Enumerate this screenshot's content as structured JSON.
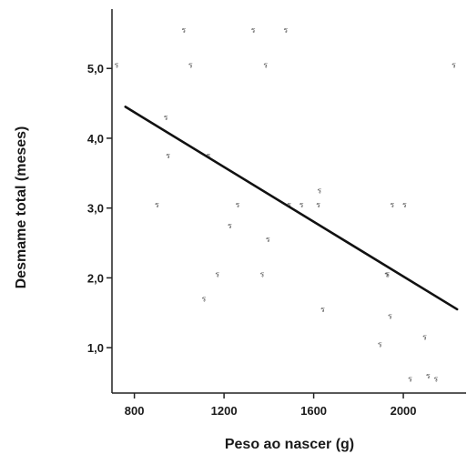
{
  "chart_data": {
    "type": "scatter",
    "xlabel": "Peso ao nascer (g)",
    "ylabel": "Desmame total (meses)",
    "xlim": [
      700,
      2280
    ],
    "ylim": [
      0.35,
      5.85
    ],
    "x_ticks": [
      800,
      1200,
      1600,
      2000
    ],
    "x_tick_labels": [
      "800",
      "1200",
      "1600",
      "2000"
    ],
    "y_ticks": [
      1.0,
      2.0,
      3.0,
      4.0,
      5.0
    ],
    "y_tick_labels": [
      "1,0",
      "2,0",
      "3,0",
      "4,0",
      "5,0"
    ],
    "marker": "ร",
    "grid": false,
    "points": [
      {
        "x": 720,
        "y": 5.05
      },
      {
        "x": 900,
        "y": 3.05
      },
      {
        "x": 940,
        "y": 4.3
      },
      {
        "x": 950,
        "y": 3.75
      },
      {
        "x": 1020,
        "y": 5.55
      },
      {
        "x": 1050,
        "y": 5.05
      },
      {
        "x": 1110,
        "y": 1.7
      },
      {
        "x": 1130,
        "y": 3.75
      },
      {
        "x": 1170,
        "y": 2.05
      },
      {
        "x": 1225,
        "y": 2.75
      },
      {
        "x": 1260,
        "y": 3.05
      },
      {
        "x": 1330,
        "y": 5.55
      },
      {
        "x": 1370,
        "y": 2.05
      },
      {
        "x": 1385,
        "y": 5.05
      },
      {
        "x": 1395,
        "y": 2.55
      },
      {
        "x": 1475,
        "y": 5.55
      },
      {
        "x": 1490,
        "y": 3.05
      },
      {
        "x": 1545,
        "y": 3.05
      },
      {
        "x": 1620,
        "y": 3.05
      },
      {
        "x": 1625,
        "y": 3.25
      },
      {
        "x": 1640,
        "y": 1.55
      },
      {
        "x": 1895,
        "y": 1.05
      },
      {
        "x": 1925,
        "y": 2.05
      },
      {
        "x": 1930,
        "y": 2.05
      },
      {
        "x": 1940,
        "y": 1.45
      },
      {
        "x": 1950,
        "y": 3.05
      },
      {
        "x": 2005,
        "y": 3.05
      },
      {
        "x": 2030,
        "y": 0.55
      },
      {
        "x": 2095,
        "y": 1.15
      },
      {
        "x": 2110,
        "y": 0.6
      },
      {
        "x": 2145,
        "y": 0.55
      },
      {
        "x": 2225,
        "y": 5.05
      }
    ],
    "trendline": {
      "x": [
        760,
        2240
      ],
      "y": [
        4.45,
        1.55
      ]
    }
  }
}
